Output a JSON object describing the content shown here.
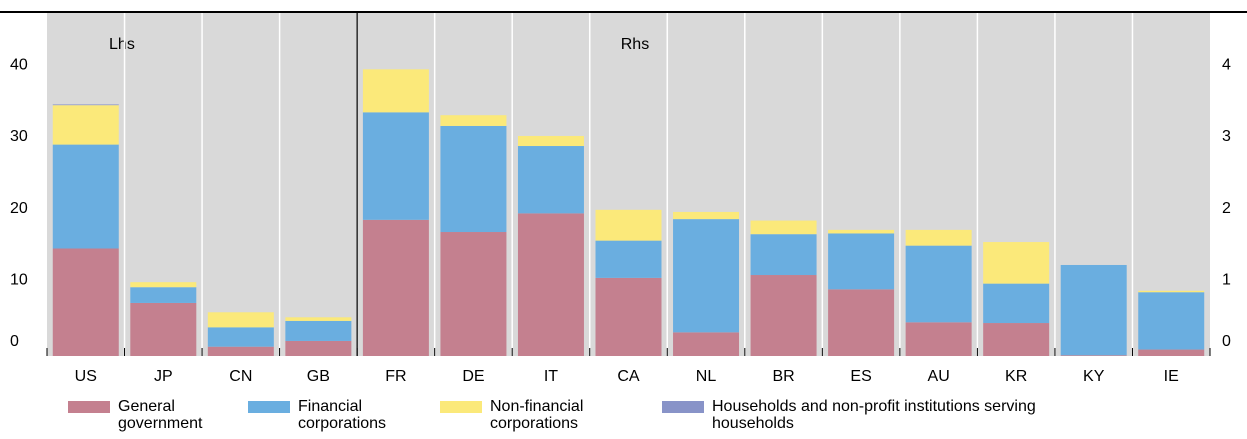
{
  "chart_data": [
    {
      "type": "bar",
      "stacked": true,
      "label": "Lhs",
      "axis": "y",
      "categories": [
        "US",
        "JP",
        "CN",
        "GB"
      ],
      "series": [
        {
          "values": [
            15,
            7.4,
            1.3,
            2.1
          ]
        },
        {
          "values": [
            14.5,
            2.2,
            2.7,
            2.8
          ]
        },
        {
          "values": [
            5.5,
            0.7,
            2.1,
            0.5
          ]
        },
        {
          "values": [
            0.1,
            0,
            0,
            0
          ]
        }
      ],
      "ylim": [
        0,
        48
      ],
      "yticks": [
        0,
        10,
        20,
        30,
        40
      ]
    },
    {
      "type": "bar",
      "stacked": true,
      "label": "Rhs",
      "axis": "y2",
      "categories": [
        "FR",
        "DE",
        "IT",
        "CA",
        "NL",
        "BR",
        "ES",
        "AU",
        "KR",
        "KY",
        "IE"
      ],
      "series": [
        {
          "values": [
            1.9,
            1.73,
            1.99,
            1.09,
            0.33,
            1.13,
            0.93,
            0.47,
            0.46,
            0.01,
            0.09
          ]
        },
        {
          "values": [
            1.5,
            1.48,
            0.94,
            0.52,
            1.58,
            0.57,
            0.78,
            1.07,
            0.55,
            1.26,
            0.8
          ]
        },
        {
          "values": [
            0.6,
            0.15,
            0.14,
            0.43,
            0.1,
            0.19,
            0.05,
            0.22,
            0.58,
            0,
            0.02
          ]
        },
        {
          "values": [
            0,
            0,
            0,
            0,
            0,
            0,
            0,
            0,
            0,
            0,
            0
          ]
        }
      ],
      "y2lim": [
        0,
        4.8
      ],
      "y2ticks": [
        0,
        1,
        2,
        3,
        4
      ]
    }
  ],
  "legend": [
    {
      "name": "General government",
      "color": "#c4808f"
    },
    {
      "name": "Financial corporations",
      "color": "#6aaee0"
    },
    {
      "name": "Non-financial corporations",
      "color": "#fbe97a"
    },
    {
      "name": "Households and non-profit institutions serving households",
      "color": "#8893c8"
    }
  ]
}
